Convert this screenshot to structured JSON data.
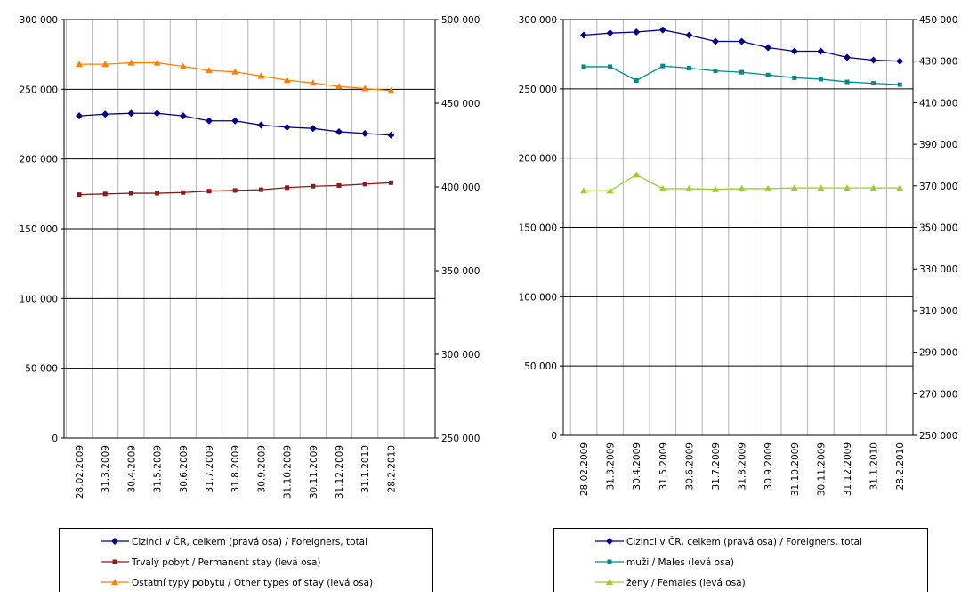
{
  "chart_data": [
    {
      "type": "line",
      "categories": [
        "28.02.2009",
        "31.3.2009",
        "30.4.2009",
        "31.5.2009",
        "30.6.2009",
        "31.7.2009",
        "31.8.2009",
        "30.9.2009",
        "31.10.2009",
        "30.11.2009",
        "31.12.2009",
        "31.1.2010",
        "28.2.2010"
      ],
      "left_axis": {
        "range": [
          0,
          300000
        ],
        "ticks": [
          0,
          50000,
          100000,
          150000,
          200000,
          250000,
          300000
        ],
        "tick_labels": [
          "0",
          "50 000",
          "100 000",
          "150 000",
          "200 000",
          "250 000",
          "300 000"
        ]
      },
      "right_axis": {
        "range": [
          250000,
          500000
        ],
        "ticks": [
          250000,
          300000,
          350000,
          400000,
          450000,
          500000
        ],
        "tick_labels": [
          "250 000",
          "300 000",
          "350 000",
          "400 000",
          "450 000",
          "500 000"
        ]
      },
      "grid": "horizontal and vertical",
      "legend_position": "bottom",
      "series": [
        {
          "name": "Cizinci v ČR, celkem (pravá osa) / Foreigners, total",
          "axis": "right",
          "color": "#00008b",
          "marker": "diamond",
          "values": [
            442500,
            443500,
            444000,
            444000,
            442500,
            439500,
            439500,
            437000,
            435700,
            435000,
            433000,
            432000,
            431000
          ]
        },
        {
          "name": "Trvalý pobyt / Permanent stay (levá osa)",
          "axis": "left",
          "color": "#8b1a1a",
          "marker": "square",
          "values": [
            174500,
            175000,
            175500,
            175500,
            176000,
            177000,
            177500,
            178000,
            179500,
            180500,
            181000,
            182000,
            183000
          ]
        },
        {
          "name": "Ostatní typy pobytu / Other types of stay (levá osa)",
          "axis": "left",
          "color": "#ff7f00",
          "marker": "triangle",
          "values": [
            268000,
            268000,
            269000,
            269000,
            266500,
            263500,
            262500,
            259500,
            256500,
            254500,
            252000,
            250500,
            249000
          ]
        }
      ]
    },
    {
      "type": "line",
      "categories": [
        "28.02.2009",
        "31.3.2009",
        "30.4.2009",
        "31.5.2009",
        "30.6.2009",
        "31.7.2009",
        "31.8.2009",
        "30.9.2009",
        "31.10.2009",
        "30.11.2009",
        "31.12.2009",
        "31.1.2010",
        "28.2.2010"
      ],
      "left_axis": {
        "range": [
          0,
          300000
        ],
        "ticks": [
          0,
          50000,
          100000,
          150000,
          200000,
          250000,
          300000
        ],
        "tick_labels": [
          "0",
          "50 000",
          "100 000",
          "150 000",
          "200 000",
          "250 000",
          "300 000"
        ]
      },
      "right_axis": {
        "range": [
          250000,
          450000
        ],
        "ticks": [
          250000,
          270000,
          290000,
          310000,
          330000,
          350000,
          370000,
          390000,
          410000,
          430000,
          450000
        ],
        "tick_labels": [
          "250 000",
          "270 000",
          "290 000",
          "310 000",
          "330 000",
          "350 000",
          "370 000",
          "390 000",
          "410 000",
          "430 000",
          "450 000"
        ]
      },
      "grid": "horizontal and vertical",
      "legend_position": "bottom",
      "series": [
        {
          "name": "Cizinci v ČR, celkem (pravá osa) / Foreigners, total",
          "axis": "right",
          "color": "#00008b",
          "marker": "diamond",
          "values": [
            442500,
            443500,
            444000,
            445000,
            442500,
            439500,
            439500,
            436500,
            434800,
            434800,
            431800,
            430500,
            430000
          ]
        },
        {
          "name": "muži / Males (levá osa)",
          "axis": "left",
          "color": "#008b8b",
          "marker": "square",
          "values": [
            266000,
            266000,
            256000,
            266500,
            265000,
            263000,
            262000,
            260000,
            258000,
            257000,
            255000,
            254000,
            253000
          ]
        },
        {
          "name": "ženy / Females (levá osa)",
          "axis": "left",
          "color": "#9acd32",
          "marker": "triangle",
          "values": [
            176500,
            176500,
            188000,
            178000,
            178000,
            177500,
            178000,
            178000,
            178500,
            178500,
            178500,
            178500,
            178500
          ]
        }
      ]
    }
  ]
}
